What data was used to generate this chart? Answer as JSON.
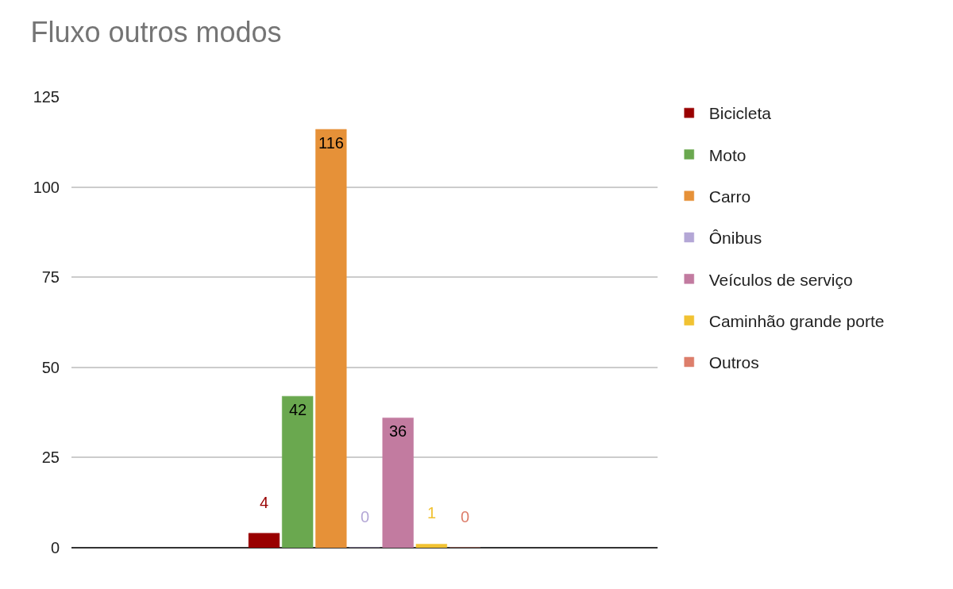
{
  "chart_data": {
    "type": "bar",
    "title": "Fluxo outros modos",
    "categories": [
      null
    ],
    "series": [
      {
        "name": "Bicicleta",
        "color": "#990000",
        "values": [
          4
        ]
      },
      {
        "name": "Moto",
        "color": "#6aa84f",
        "values": [
          42
        ]
      },
      {
        "name": "Carro",
        "color": "#e69138",
        "values": [
          116
        ]
      },
      {
        "name": "Ônibus",
        "color": "#b4a7d6",
        "values": [
          0
        ]
      },
      {
        "name": "Veículos de serviço",
        "color": "#c27ba0",
        "values": [
          36
        ]
      },
      {
        "name": "Caminhão grande porte",
        "color": "#f1c232",
        "values": [
          1
        ]
      },
      {
        "name": "Outros",
        "color": "#dd7e6b",
        "values": [
          0
        ]
      }
    ],
    "ylim": [
      0,
      125
    ],
    "yticks": [
      0,
      25,
      50,
      75,
      100,
      125
    ],
    "grid": "y",
    "legend": "right",
    "data_labels": true,
    "tick_labels": "y"
  }
}
